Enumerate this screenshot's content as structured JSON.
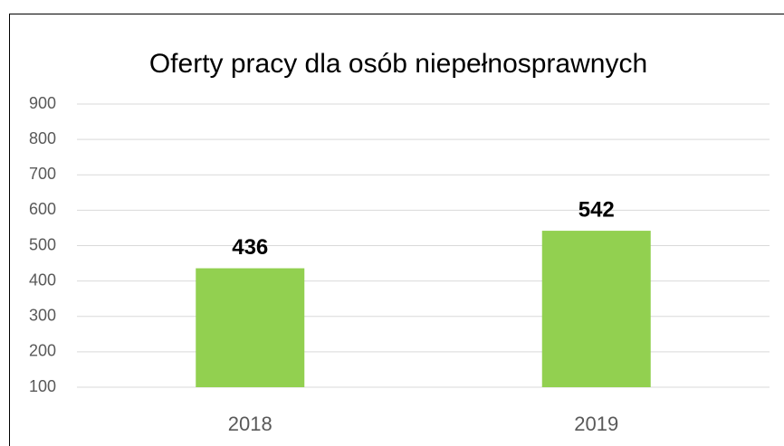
{
  "chart_data": {
    "type": "bar",
    "title": "Oferty pracy dla osób niepełnosprawnych",
    "categories": [
      "2018",
      "2019"
    ],
    "values": [
      436,
      542
    ],
    "color": "#92d050",
    "ylim": [
      100,
      900
    ],
    "yticks": [
      100,
      200,
      300,
      400,
      500,
      600,
      700,
      800,
      900
    ],
    "grid": true
  }
}
